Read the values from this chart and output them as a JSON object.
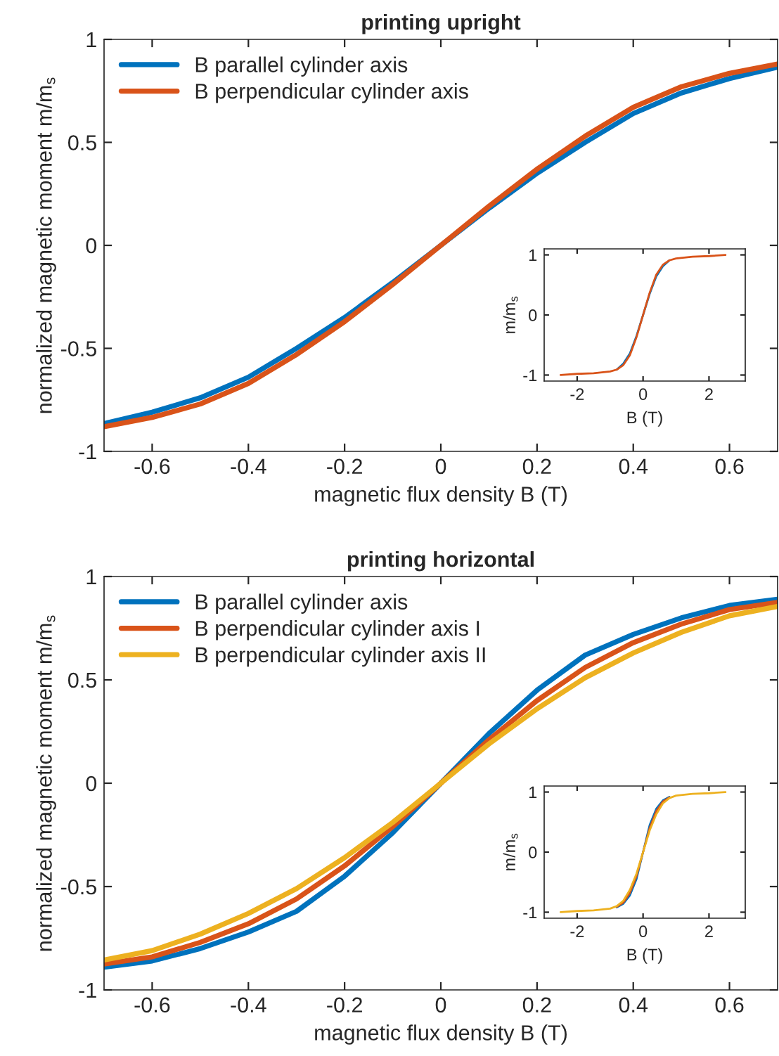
{
  "chart_data": [
    {
      "type": "line",
      "title": "printing upright",
      "xlabel": "magnetic flux density B (T)",
      "ylabel": "normalized magnetic moment m/m$_{s}$",
      "x": [
        -0.7,
        -0.6,
        -0.5,
        -0.4,
        -0.3,
        -0.2,
        -0.1,
        0,
        0.1,
        0.2,
        0.3,
        0.4,
        0.5,
        0.6,
        0.7
      ],
      "series": [
        {
          "name": "B parallel cylinder axis",
          "color": "#0072bd",
          "values": [
            -0.865,
            -0.81,
            -0.74,
            -0.64,
            -0.5,
            -0.35,
            -0.18,
            0,
            0.18,
            0.35,
            0.5,
            0.64,
            0.74,
            0.81,
            0.865
          ]
        },
        {
          "name": "B perpendicular cylinder axis",
          "color": "#d95319",
          "values": [
            -0.88,
            -0.835,
            -0.77,
            -0.67,
            -0.53,
            -0.37,
            -0.19,
            0,
            0.19,
            0.37,
            0.53,
            0.67,
            0.77,
            0.835,
            0.88
          ]
        }
      ],
      "xlim": [
        -0.7,
        0.7
      ],
      "ylim": [
        -1,
        1
      ],
      "xticks": [
        -0.6,
        -0.4,
        -0.2,
        0,
        0.2,
        0.4,
        0.6
      ],
      "yticks": [
        -1,
        -0.5,
        0,
        0.5,
        1
      ],
      "legend": "top left"
    },
    {
      "type": "line",
      "xlabel": "B (T)",
      "ylabel": "m/m$_{s}$",
      "x": [
        -2.5,
        -2,
        -1.5,
        -1,
        -0.8,
        -0.6,
        -0.4,
        -0.2,
        0,
        0.2,
        0.4,
        0.6,
        0.8,
        1,
        1.5,
        2,
        2.5
      ],
      "series": [
        {
          "color": "#0072bd",
          "values": [
            null,
            null,
            null,
            null,
            -0.91,
            -0.81,
            -0.64,
            -0.35,
            0,
            0.35,
            0.64,
            0.81,
            0.91,
            null,
            null,
            null,
            null
          ]
        },
        {
          "color": "#d95319",
          "values": [
            -1,
            -0.98,
            -0.97,
            -0.94,
            -0.91,
            -0.835,
            -0.67,
            -0.37,
            0,
            0.37,
            0.67,
            0.835,
            0.91,
            0.94,
            0.97,
            0.98,
            1
          ]
        }
      ],
      "xlim": [
        -3,
        3.1
      ],
      "ylim": [
        -1.1,
        1.1
      ],
      "xticks": [
        -2,
        0,
        2
      ],
      "yticks": [
        -1,
        0,
        1
      ]
    },
    {
      "type": "line",
      "title": "printing horizontal",
      "xlabel": "magnetic flux density B (T)",
      "ylabel": "normalized magnetic moment m/m$_{s}$",
      "x": [
        -0.7,
        -0.6,
        -0.5,
        -0.4,
        -0.3,
        -0.2,
        -0.1,
        0,
        0.1,
        0.2,
        0.3,
        0.4,
        0.5,
        0.6,
        0.7
      ],
      "series": [
        {
          "name": "B parallel cylinder axis",
          "color": "#0072bd",
          "values": [
            -0.89,
            -0.86,
            -0.8,
            -0.72,
            -0.62,
            -0.45,
            -0.24,
            0,
            0.24,
            0.45,
            0.62,
            0.72,
            0.8,
            0.86,
            0.89
          ]
        },
        {
          "name": "B perpendicular cylinder axis I",
          "color": "#d95319",
          "values": [
            -0.875,
            -0.84,
            -0.77,
            -0.68,
            -0.56,
            -0.4,
            -0.21,
            0,
            0.21,
            0.4,
            0.56,
            0.68,
            0.77,
            0.84,
            0.875
          ]
        },
        {
          "name": "B perpendicular cylinder axis II",
          "color": "#edb120",
          "values": [
            -0.855,
            -0.81,
            -0.73,
            -0.63,
            -0.51,
            -0.36,
            -0.19,
            0,
            0.19,
            0.36,
            0.51,
            0.63,
            0.73,
            0.81,
            0.855
          ]
        }
      ],
      "xlim": [
        -0.7,
        0.7
      ],
      "ylim": [
        -1,
        1
      ],
      "xticks": [
        -0.6,
        -0.4,
        -0.2,
        0,
        0.2,
        0.4,
        0.6
      ],
      "yticks": [
        -1,
        -0.5,
        0,
        0.5,
        1
      ],
      "legend": "top left"
    },
    {
      "type": "line",
      "xlabel": "B (T)",
      "ylabel": "m/m$_{s}$",
      "x": [
        -2.5,
        -2,
        -1.5,
        -1,
        -0.8,
        -0.6,
        -0.4,
        -0.2,
        0,
        0.2,
        0.4,
        0.6,
        0.8,
        1,
        1.5,
        2,
        2.5
      ],
      "series": [
        {
          "color": "#0072bd",
          "values": [
            null,
            null,
            null,
            null,
            -0.92,
            -0.86,
            -0.72,
            -0.45,
            0,
            0.45,
            0.72,
            0.86,
            0.92,
            null,
            null,
            null,
            null
          ]
        },
        {
          "color": "#d95319",
          "values": [
            null,
            null,
            null,
            null,
            -0.91,
            -0.84,
            -0.68,
            -0.4,
            0,
            0.4,
            0.68,
            0.84,
            0.91,
            null,
            null,
            null,
            null
          ]
        },
        {
          "color": "#edb120",
          "values": [
            -1,
            -0.98,
            -0.97,
            -0.94,
            -0.9,
            -0.81,
            -0.63,
            -0.36,
            0,
            0.36,
            0.63,
            0.81,
            0.9,
            0.94,
            0.97,
            0.98,
            1
          ]
        }
      ],
      "xlim": [
        -3,
        3.1
      ],
      "ylim": [
        -1.1,
        1.1
      ],
      "xticks": [
        -2,
        0,
        2
      ],
      "yticks": [
        -1,
        0,
        1
      ]
    }
  ]
}
